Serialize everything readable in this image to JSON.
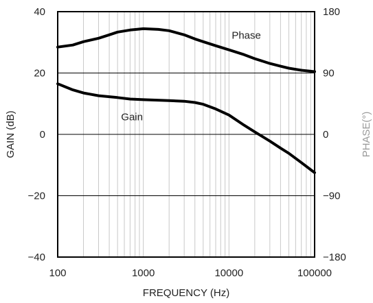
{
  "chart_data": {
    "type": "line",
    "title": "",
    "xlabel": "FREQUENCY (Hz)",
    "ylabel_left": "GAIN (dB)",
    "ylabel_right": "PHASE(°)",
    "x_scale": "log",
    "xlim": [
      100,
      100000
    ],
    "ylim_left": [
      -40,
      40
    ],
    "ylim_right": [
      -180,
      180
    ],
    "x_ticks": [
      "100",
      "1000",
      "10000",
      "100000"
    ],
    "y_ticks_left": [
      "40",
      "20",
      "0",
      "−20",
      "−40"
    ],
    "y_ticks_right": [
      "180",
      "90",
      "0",
      "−90",
      "−180"
    ],
    "grid": {
      "vertical_minor_log": true,
      "horizontal_major": true
    },
    "colors": {
      "curve": "#000000",
      "grid": "#c8c8c8",
      "frame": "#000000"
    },
    "series": [
      {
        "name": "Phase",
        "axis": "right",
        "points": [
          [
            100,
            128
          ],
          [
            150,
            131
          ],
          [
            200,
            136
          ],
          [
            300,
            141
          ],
          [
            400,
            146
          ],
          [
            500,
            150
          ],
          [
            700,
            153
          ],
          [
            1000,
            155
          ],
          [
            1500,
            154
          ],
          [
            2000,
            152
          ],
          [
            3000,
            146
          ],
          [
            4000,
            140
          ],
          [
            5000,
            136
          ],
          [
            7000,
            130
          ],
          [
            10000,
            124
          ],
          [
            15000,
            117
          ],
          [
            20000,
            111
          ],
          [
            30000,
            104
          ],
          [
            40000,
            100
          ],
          [
            50000,
            97
          ],
          [
            70000,
            94
          ],
          [
            100000,
            92
          ]
        ]
      },
      {
        "name": "Gain",
        "axis": "left",
        "points": [
          [
            100,
            16.5
          ],
          [
            150,
            14.5
          ],
          [
            200,
            13.5
          ],
          [
            300,
            12.6
          ],
          [
            500,
            12.0
          ],
          [
            700,
            11.5
          ],
          [
            1000,
            11.3
          ],
          [
            2000,
            11.0
          ],
          [
            3000,
            10.8
          ],
          [
            4000,
            10.4
          ],
          [
            5000,
            9.8
          ],
          [
            7000,
            8.3
          ],
          [
            10000,
            6.3
          ],
          [
            15000,
            3.0
          ],
          [
            20000,
            0.8
          ],
          [
            30000,
            -2.2
          ],
          [
            40000,
            -4.5
          ],
          [
            50000,
            -6.2
          ],
          [
            70000,
            -9.2
          ],
          [
            100000,
            -12.5
          ]
        ]
      }
    ],
    "annotations": [
      {
        "text": "Phase",
        "near_series": "Phase"
      },
      {
        "text": "Gain",
        "near_series": "Gain"
      }
    ]
  }
}
